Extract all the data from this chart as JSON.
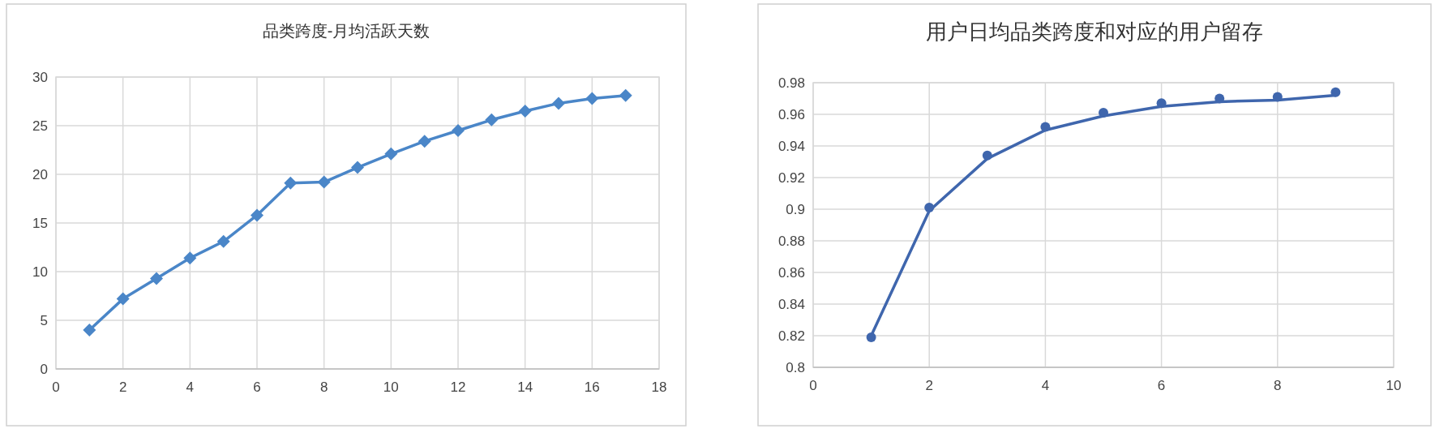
{
  "chart_data": [
    {
      "type": "line",
      "title": "品类跨度-月均活跃天数",
      "x": [
        1,
        2,
        3,
        4,
        5,
        6,
        7,
        8,
        9,
        10,
        11,
        12,
        13,
        14,
        15,
        16,
        17
      ],
      "xlim": [
        0,
        18
      ],
      "xticks": [
        0,
        2,
        4,
        6,
        8,
        10,
        12,
        14,
        16,
        18
      ],
      "ylim": [
        0,
        30
      ],
      "yticks": [
        0,
        5,
        10,
        15,
        20,
        25,
        30
      ],
      "grid": true,
      "marker": "diamond",
      "series": [
        {
          "color": "#4a86c8",
          "values": [
            4.0,
            7.2,
            9.3,
            11.4,
            13.1,
            15.8,
            19.1,
            19.2,
            20.7,
            22.1,
            23.4,
            24.5,
            25.6,
            26.5,
            27.3,
            27.8,
            28.1
          ]
        }
      ]
    },
    {
      "type": "scatter",
      "title": "用户日均品类跨度和对应的用户留存",
      "x": [
        1,
        2,
        3,
        4,
        5,
        6,
        7,
        8,
        9
      ],
      "xlim": [
        0,
        10
      ],
      "xticks": [
        0,
        2,
        4,
        6,
        8,
        10
      ],
      "ylim": [
        0.8,
        0.98
      ],
      "yticks": [
        {
          "value": 0.8,
          "label": "0.8"
        },
        0.82,
        0.84,
        0.86,
        0.88,
        {
          "value": 0.9,
          "label": "0.9"
        },
        0.92,
        0.94,
        0.96,
        0.98
      ],
      "grid": true,
      "marker": "circle",
      "series": [
        {
          "color": "#3f66ad",
          "values": [
            0.819,
            0.901,
            0.934,
            0.952,
            0.961,
            0.967,
            0.97,
            0.971,
            0.974
          ]
        },
        {
          "type": "line",
          "marker": "none",
          "color": "#3f66ad",
          "x": [
            1,
            2,
            3,
            4,
            5,
            6,
            7,
            8,
            9
          ],
          "values": [
            0.82,
            0.899,
            0.932,
            0.95,
            0.959,
            0.965,
            0.968,
            0.969,
            0.972
          ]
        }
      ]
    }
  ]
}
